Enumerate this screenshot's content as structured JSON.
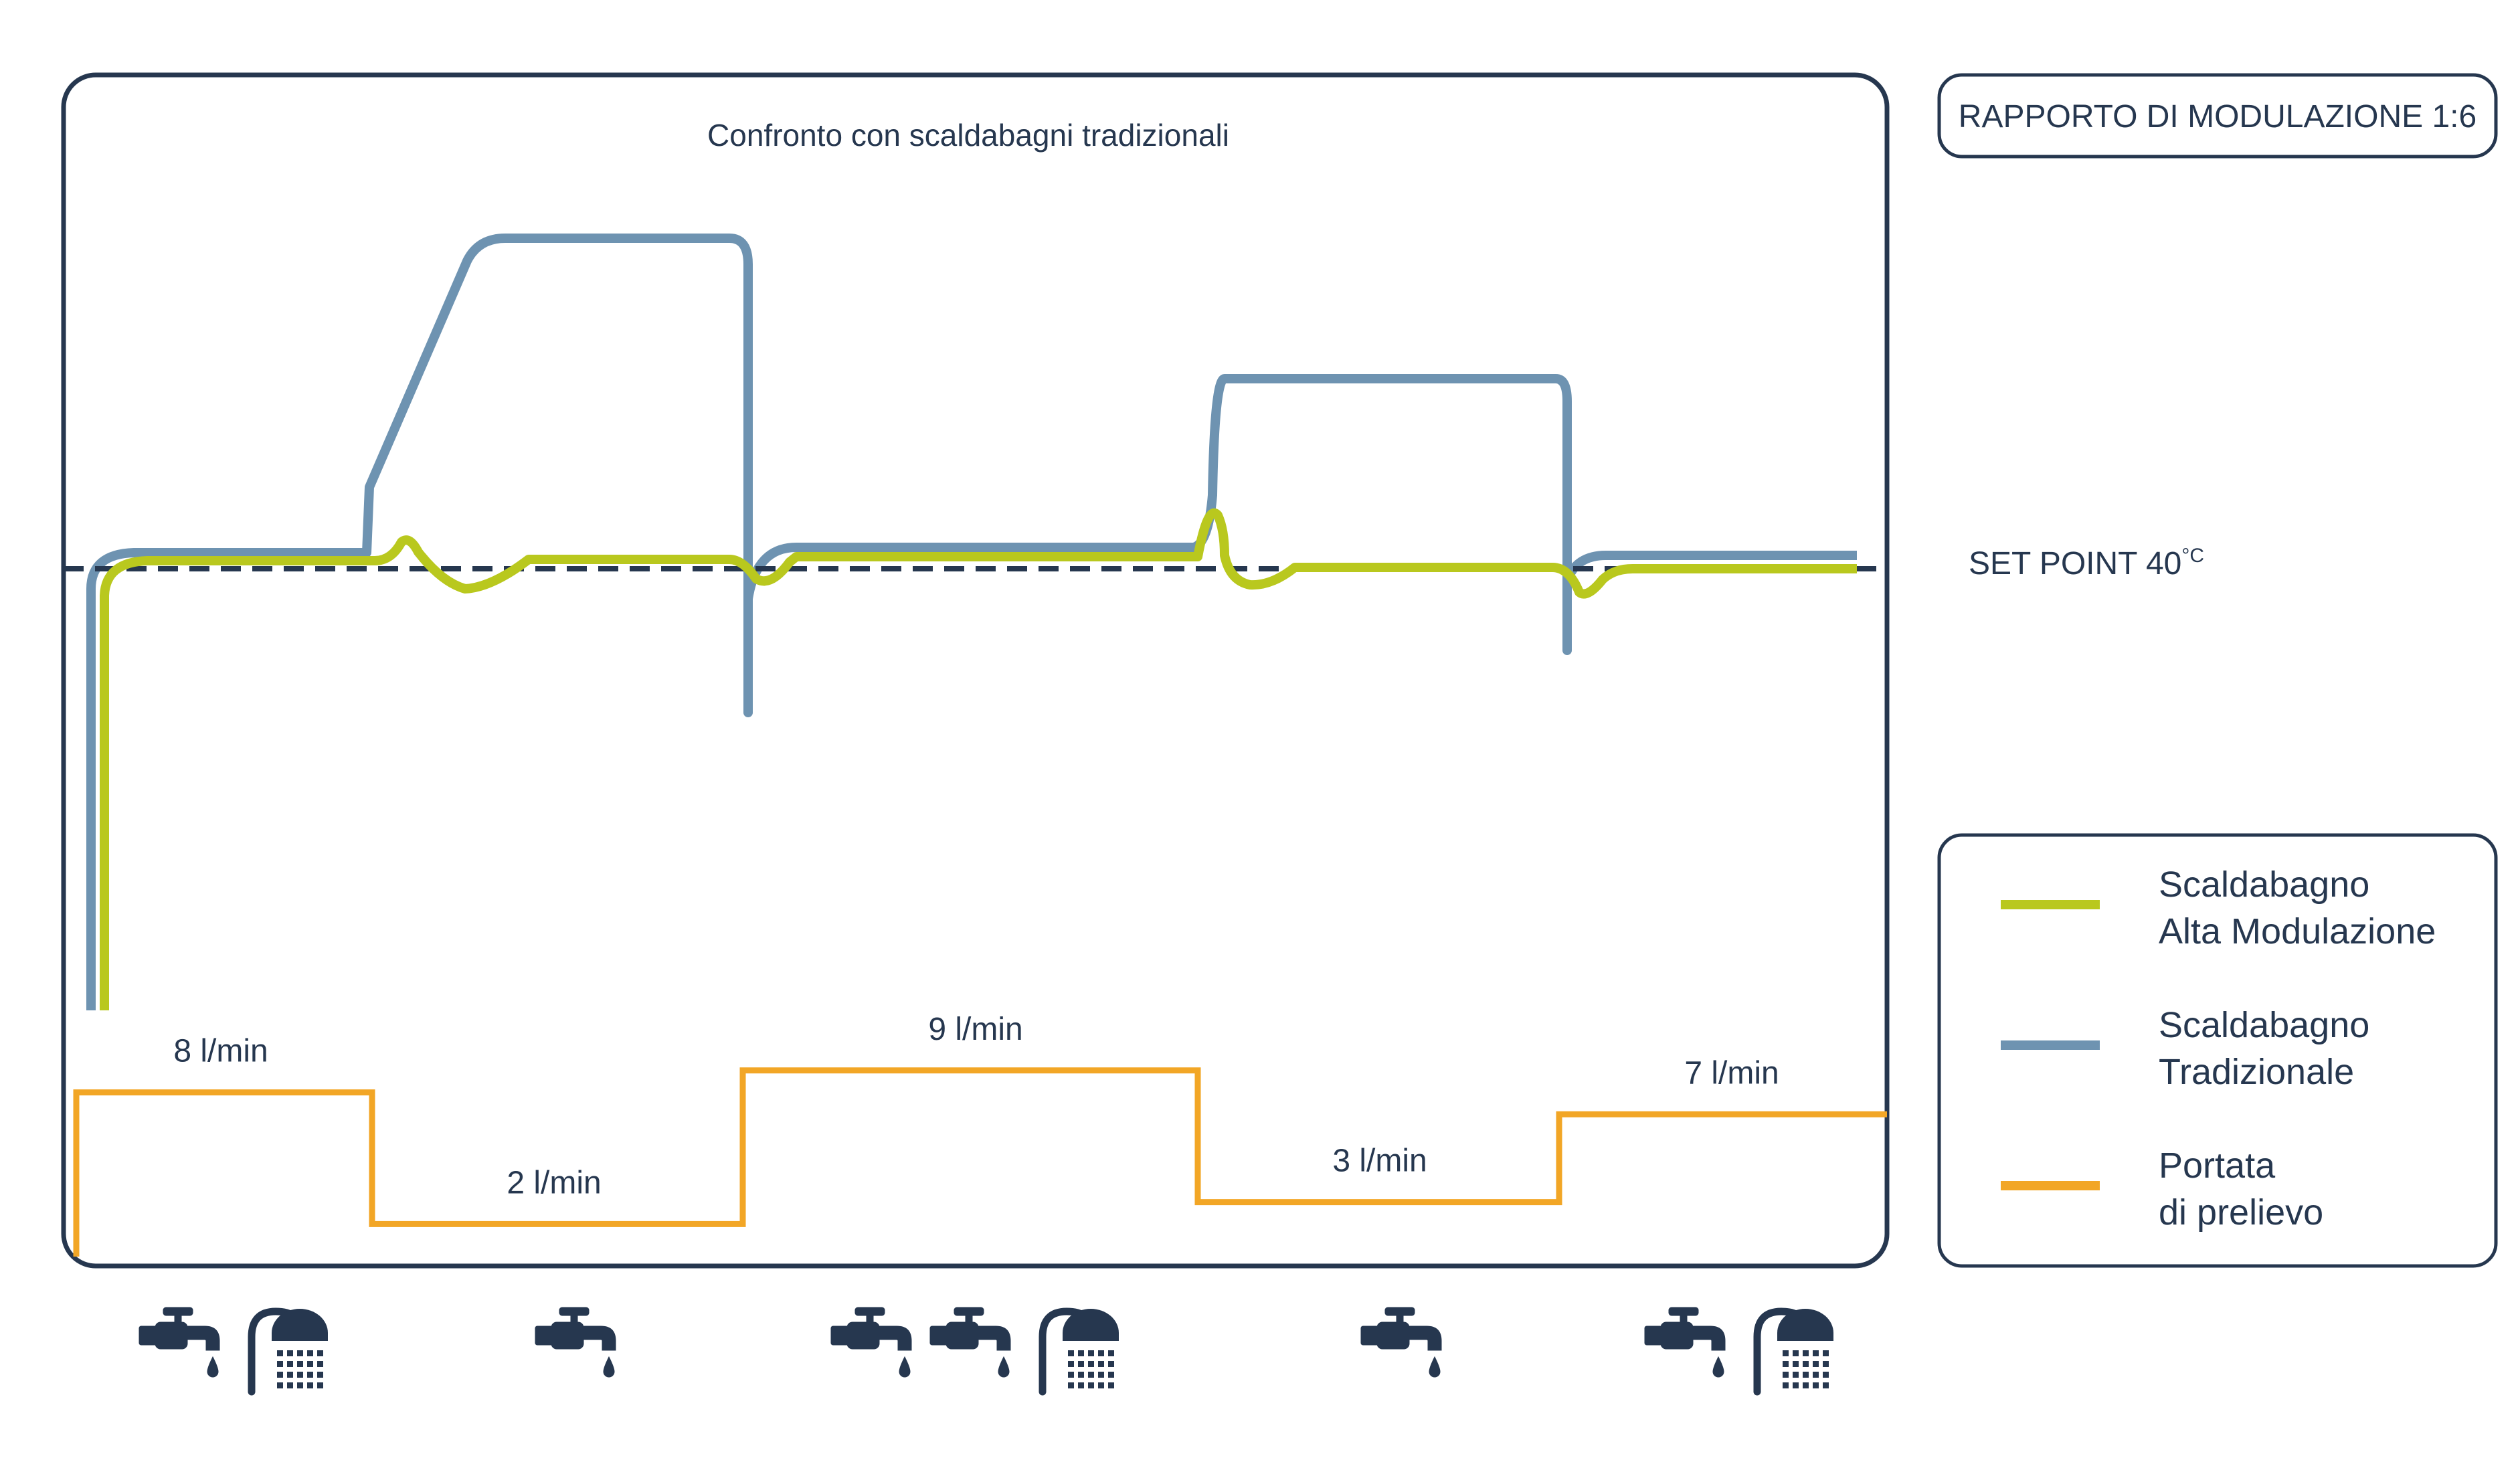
{
  "chart_data": {
    "type": "line",
    "title": "Confronto con scaldabagni tradizionali",
    "modulation_label": "RAPPORTO DI MODULAZIONE 1:6",
    "set_point": {
      "label": "SET POINT 40",
      "unit": "°C"
    },
    "legend": {
      "placement": "right",
      "items": [
        {
          "key": "alta",
          "lines": [
            "Scaldabagno",
            "Alta Modulazione"
          ],
          "color": "#b9c81e"
        },
        {
          "key": "trad",
          "lines": [
            "Scaldabagno",
            "Tradizionale"
          ],
          "color": "#6e93b1"
        },
        {
          "key": "portata",
          "lines": [
            "Portata",
            "di prelievo"
          ],
          "color": "#f2a626"
        }
      ]
    },
    "flow_segments": [
      {
        "label": "8 l/min",
        "value": 8,
        "usage": [
          "tap-icon",
          "shower-icon"
        ]
      },
      {
        "label": "2 l/min",
        "value": 2,
        "usage": [
          "tap-icon"
        ]
      },
      {
        "label": "9 l/min",
        "value": 9,
        "usage": [
          "tap-icon",
          "tap-icon",
          "shower-icon"
        ]
      },
      {
        "label": "3 l/min",
        "value": 3,
        "usage": [
          "tap-icon"
        ]
      },
      {
        "label": "7 l/min",
        "value": 7,
        "usage": [
          "tap-icon",
          "shower-icon"
        ]
      }
    ],
    "grid": false,
    "axes_visible": false
  },
  "colors": {
    "frame": "#26374f",
    "alta": "#b9c81e",
    "trad": "#6e93b1",
    "portata": "#f2a626",
    "setpoint": "#26374f"
  }
}
